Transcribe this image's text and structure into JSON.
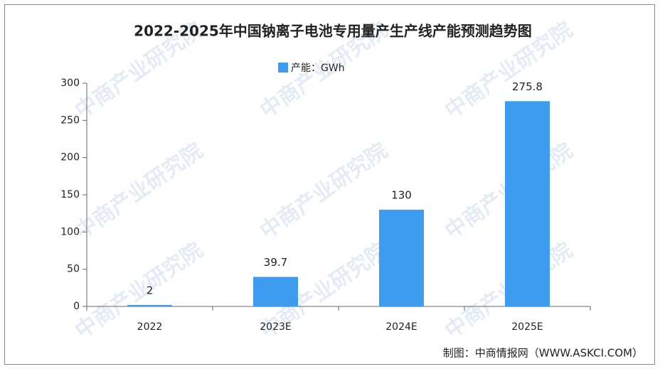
{
  "chart_data": {
    "type": "bar",
    "title": "2022-2025年中国钠离子电池专用量产生产线产能预测趋势图",
    "categories": [
      "2022",
      "2023E",
      "2024E",
      "2025E"
    ],
    "series": [
      {
        "name": "产能：GWh",
        "color": "#3d9bf0",
        "values": [
          2,
          39.7,
          130,
          275.8
        ]
      }
    ],
    "ylim": [
      0,
      300
    ],
    "yticks": [
      0,
      50,
      100,
      150,
      200,
      250,
      300
    ],
    "source": "制图：中商情报网（WWW.ASKCI.COM）",
    "watermark": "中商产业研究院"
  }
}
